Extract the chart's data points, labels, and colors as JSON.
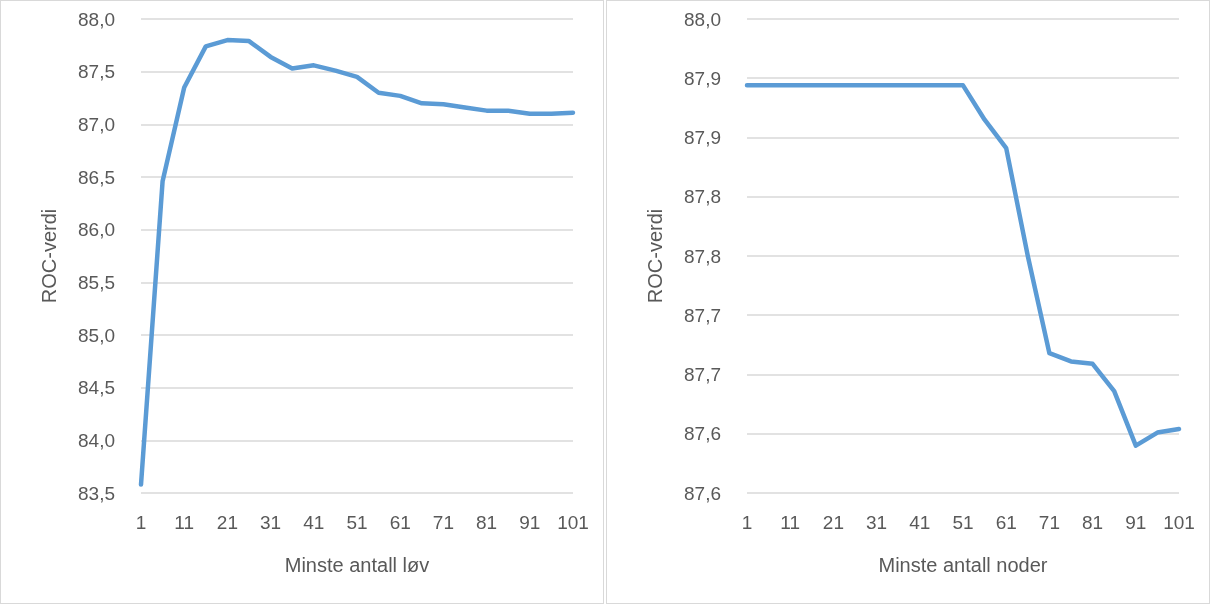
{
  "chart_data": [
    {
      "type": "line",
      "xlabel": "Minste antall løv",
      "ylabel": "ROC-verdi",
      "categories": [
        "1",
        null,
        "11",
        null,
        "21",
        null,
        "31",
        null,
        "41",
        null,
        "51",
        null,
        "61",
        null,
        "71",
        null,
        "81",
        null,
        "91",
        null,
        "101"
      ],
      "series": [
        {
          "color": "#5b9bd5",
          "values": [
            83.58,
            86.46,
            87.35,
            87.74,
            87.8,
            87.79,
            87.64,
            87.53,
            87.56,
            87.51,
            87.45,
            87.3,
            87.27,
            87.2,
            87.19,
            87.16,
            87.13,
            87.13,
            87.1,
            87.1,
            87.11
          ]
        }
      ],
      "ylim": [
        83.5,
        88.0
      ],
      "yticks": [
        {
          "value": 83.5,
          "label": "83,5"
        },
        {
          "value": 84.0,
          "label": "84,0"
        },
        {
          "value": 84.5,
          "label": "84,5"
        },
        {
          "value": 85.0,
          "label": "85,0"
        },
        {
          "value": 85.5,
          "label": "85,5"
        },
        {
          "value": 86.0,
          "label": "86,0"
        },
        {
          "value": 86.5,
          "label": "86,5"
        },
        {
          "value": 87.0,
          "label": "87,0"
        },
        {
          "value": 87.5,
          "label": "87,5"
        },
        {
          "value": 88.0,
          "label": "88,0"
        }
      ],
      "grid": "y",
      "marker": "none",
      "line_style": "solid"
    },
    {
      "type": "line",
      "xlabel": "Minste antall noder",
      "ylabel": "ROC-verdi",
      "categories": [
        "1",
        null,
        "11",
        null,
        "21",
        null,
        "31",
        null,
        "41",
        null,
        "51",
        null,
        "61",
        null,
        "71",
        null,
        "81",
        null,
        "91",
        null,
        "101"
      ],
      "series": [
        {
          "color": "#5b9bd5",
          "values": [
            87.944,
            87.944,
            87.944,
            87.944,
            87.944,
            87.944,
            87.944,
            87.944,
            87.944,
            87.944,
            87.944,
            87.915,
            87.891,
            87.8,
            87.718,
            87.711,
            87.709,
            87.686,
            87.64,
            87.651,
            87.654
          ]
        }
      ],
      "ylim": [
        87.6,
        88.0
      ],
      "yticks": [
        {
          "value": 87.6,
          "label": "87,6"
        },
        {
          "value": 87.65,
          "label": "87,6"
        },
        {
          "value": 87.7,
          "label": "87,7"
        },
        {
          "value": 87.75,
          "label": "87,7"
        },
        {
          "value": 87.8,
          "label": "87,8"
        },
        {
          "value": 87.85,
          "label": "87,8"
        },
        {
          "value": 87.9,
          "label": "87,9"
        },
        {
          "value": 87.95,
          "label": "87,9"
        },
        {
          "value": 88.0,
          "label": "88,0"
        }
      ],
      "grid": "y",
      "marker": "none",
      "line_style": "solid"
    }
  ]
}
